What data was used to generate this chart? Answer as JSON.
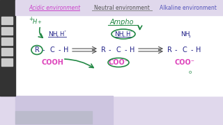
{
  "bg_lavender": "#e0d8ec",
  "bg_white": "#ffffff",
  "bg_bottom_lavender": "#cdc5e0",
  "title_acidic": "Acidic environment",
  "title_neutral": "Neutral environment",
  "title_alkaline": "Alkaline environment",
  "title_acidic_color": "#cc44cc",
  "title_neutral_color": "#555555",
  "title_alkaline_color": "#5555bb",
  "struct_color": "#222288",
  "green_color": "#228844",
  "pink_color": "#dd44bb",
  "sidebar_color": "#111111"
}
